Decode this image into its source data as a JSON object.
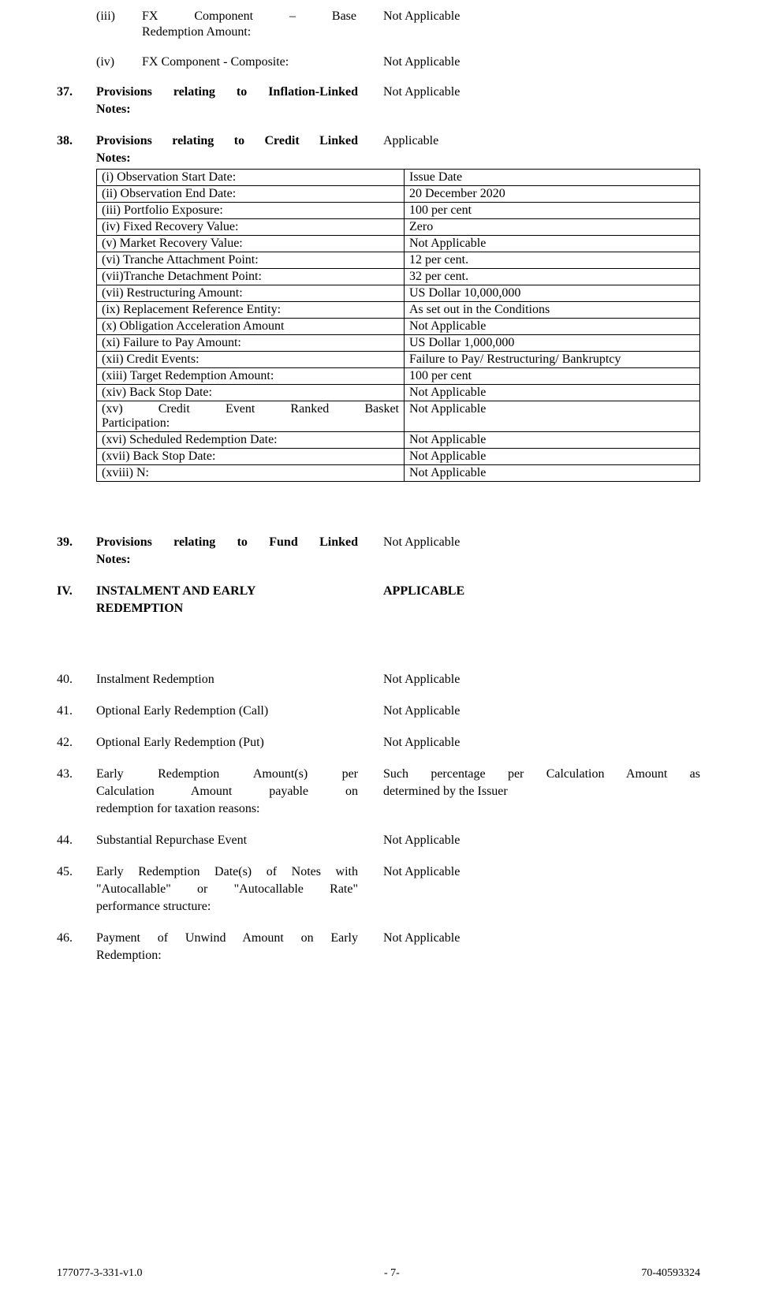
{
  "items": {
    "iii": {
      "num": "(iii)",
      "label1": "FX Component – Base",
      "label2": "Redemption Amount:",
      "value": "Not Applicable"
    },
    "iv_sub": {
      "num": "(iv)",
      "label": "FX Component - Composite:",
      "value": "Not Applicable"
    },
    "n37": {
      "num": "37.",
      "label1": "Provisions relating to Inflation-Linked",
      "label2": "Notes:",
      "value": "Not Applicable"
    },
    "n38": {
      "num": "38.",
      "label1": "Provisions relating to Credit Linked",
      "label2": "Notes:",
      "value": "Applicable"
    },
    "n39": {
      "num": "39.",
      "label1": "Provisions relating to Fund Linked",
      "label2": "Notes:",
      "value": "Not Applicable"
    },
    "nIV": {
      "num": "IV.",
      "label1": "INSTALMENT AND EARLY",
      "label2": "REDEMPTION",
      "value": "APPLICABLE"
    },
    "n40": {
      "num": "40.",
      "label": "Instalment Redemption",
      "value": "Not Applicable"
    },
    "n41": {
      "num": "41.",
      "label": "Optional Early Redemption (Call)",
      "value": "Not Applicable"
    },
    "n42": {
      "num": "42.",
      "label": "Optional Early Redemption (Put)",
      "value": "Not Applicable"
    },
    "n43": {
      "num": "43.",
      "label1": "Early Redemption Amount(s) per",
      "label2": "Calculation Amount payable on",
      "label3": "redemption for taxation reasons:",
      "value1": "Such percentage per Calculation Amount as",
      "value2": "determined by the Issuer"
    },
    "n44": {
      "num": "44.",
      "label": "Substantial Repurchase Event",
      "value": "Not Applicable"
    },
    "n45": {
      "num": "45.",
      "label1": "Early Redemption Date(s) of Notes with",
      "label2": "\"Autocallable\" or \"Autocallable Rate\"",
      "label3": "performance structure:",
      "value": "Not Applicable"
    },
    "n46": {
      "num": "46.",
      "label1": "Payment of Unwind Amount on Early",
      "label2": "Redemption:",
      "value": "Not Applicable"
    }
  },
  "table38": {
    "rows": [
      {
        "l": "(i) Observation Start Date:",
        "r": "Issue Date"
      },
      {
        "l": "(ii) Observation End Date:",
        "r": "20 December 2020"
      },
      {
        "l": "(iii) Portfolio Exposure:",
        "r": "100 per cent"
      },
      {
        "l": "(iv) Fixed Recovery Value:",
        "r": "Zero"
      },
      {
        "l": "(v) Market Recovery Value:",
        "r": "Not Applicable"
      },
      {
        "l": "(vi) Tranche Attachment Point:",
        "r": "12 per cent."
      },
      {
        "l": "(vii)Tranche Detachment Point:",
        "r": "32 per cent."
      },
      {
        "l": "(vii) Restructuring Amount:",
        "r": "US Dollar 10,000,000"
      },
      {
        "l": "(ix) Replacement Reference Entity:",
        "r": "As set out in the Conditions"
      },
      {
        "l": "(x) Obligation Acceleration Amount",
        "r": "Not Applicable"
      },
      {
        "l": "(xi) Failure to Pay Amount:",
        "r": "US Dollar 1,000,000"
      },
      {
        "l": "(xii) Credit Events:",
        "r": "Failure to Pay/ Restructuring/ Bankruptcy"
      },
      {
        "l": "(xiii) Target Redemption Amount:",
        "r": "100 per cent"
      },
      {
        "l": "(xiv) Back Stop Date:",
        "r": "Not Applicable"
      },
      {
        "l": "(xv) Credit Event Ranked Basket Participation:",
        "r": "Not Applicable"
      },
      {
        "l": "(xvi) Scheduled Redemption Date:",
        "r": "Not Applicable"
      },
      {
        "l": "(xvii) Back Stop Date:",
        "r": "Not Applicable"
      },
      {
        "l": "(xviii) N:",
        "r": "Not Applicable"
      }
    ]
  },
  "footer": {
    "left": "177077-3-331-v1.0",
    "center": "- 7-",
    "right": "70-40593324"
  }
}
